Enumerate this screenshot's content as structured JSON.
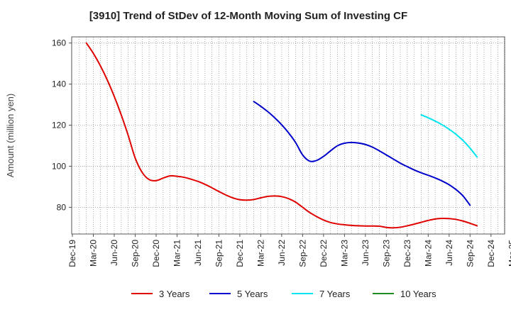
{
  "chart_data": {
    "type": "line",
    "title": "[3910]  Trend of StDev of 12-Month Moving Sum of Investing CF",
    "xlabel": "",
    "ylabel": "Amount (million yen)",
    "ylim": [
      67,
      163
    ],
    "yticks": [
      80,
      100,
      120,
      140,
      160
    ],
    "grid": true,
    "legend_position": "bottom",
    "x_tick_labels": [
      "Dec-19",
      "Mar-20",
      "Jun-20",
      "Sep-20",
      "Dec-20",
      "Mar-21",
      "Jun-21",
      "Sep-21",
      "Dec-21",
      "Mar-22",
      "Jun-22",
      "Sep-22",
      "Dec-22",
      "Mar-23",
      "Jun-23",
      "Sep-23",
      "Dec-23",
      "Mar-24",
      "Jun-24",
      "Sep-24",
      "Dec-24",
      "Mar-25"
    ],
    "x_months": [
      "Dec-19",
      "Jan-20",
      "Feb-20",
      "Mar-20",
      "Apr-20",
      "May-20",
      "Jun-20",
      "Jul-20",
      "Aug-20",
      "Sep-20",
      "Oct-20",
      "Nov-20",
      "Dec-20",
      "Jan-21",
      "Feb-21",
      "Mar-21",
      "Apr-21",
      "May-21",
      "Jun-21",
      "Jul-21",
      "Aug-21",
      "Sep-21",
      "Oct-21",
      "Nov-21",
      "Dec-21",
      "Jan-22",
      "Feb-22",
      "Mar-22",
      "Apr-22",
      "May-22",
      "Jun-22",
      "Jul-22",
      "Aug-22",
      "Sep-22",
      "Oct-22",
      "Nov-22",
      "Dec-22",
      "Jan-23",
      "Feb-23",
      "Mar-23",
      "Apr-23",
      "May-23",
      "Jun-23",
      "Jul-23",
      "Aug-23",
      "Sep-23",
      "Oct-23",
      "Nov-23",
      "Dec-23",
      "Jan-24",
      "Feb-24",
      "Mar-24",
      "Apr-24",
      "May-24",
      "Jun-24",
      "Jul-24",
      "Aug-24",
      "Sep-24",
      "Oct-24",
      "Nov-24",
      "Dec-24",
      "Jan-25",
      "Feb-25",
      "Mar-25"
    ],
    "series": [
      {
        "name": "3 Years",
        "color": "#e00000",
        "start": "Feb-20",
        "values": [
          160,
          155,
          149,
          142,
          134,
          125,
          115,
          104,
          97,
          93.5,
          93,
          94.2,
          95.3,
          95.1,
          94.6,
          93.7,
          92.6,
          91.2,
          89.5,
          87.7,
          86,
          84.6,
          83.7,
          83.5,
          83.8,
          84.6,
          85.3,
          85.5,
          85.2,
          84.2,
          82.5,
          80,
          77.5,
          75.5,
          73.8,
          72.6,
          71.9,
          71.5,
          71.2,
          71,
          70.9,
          70.9,
          70.8,
          70.2,
          70,
          70.3,
          71,
          71.8,
          72.7,
          73.6,
          74.3,
          74.6,
          74.5,
          74.1,
          73.3,
          72.2,
          71
        ]
      },
      {
        "name": "5 Years",
        "color": "#0000cc",
        "start": "Feb-22",
        "values": [
          131.5,
          129.2,
          126.6,
          123.6,
          120.2,
          116.2,
          111.5,
          105.5,
          102.5,
          102.8,
          104.8,
          107.5,
          110,
          111.2,
          111.6,
          111.3,
          110.6,
          109.3,
          107.5,
          105.5,
          103.5,
          101.5,
          99.8,
          98.2,
          96.8,
          95.6,
          94.3,
          92.8,
          91,
          88.6,
          85.5,
          81
        ]
      },
      {
        "name": "7 Years",
        "color": "#00e5ee",
        "start": "Feb-24",
        "values": [
          125,
          123.6,
          122,
          120.2,
          118,
          115.5,
          112.5,
          108.8,
          104.5
        ]
      },
      {
        "name": "10 Years",
        "color": "#228b22",
        "start": "Feb-24",
        "values": []
      }
    ]
  }
}
